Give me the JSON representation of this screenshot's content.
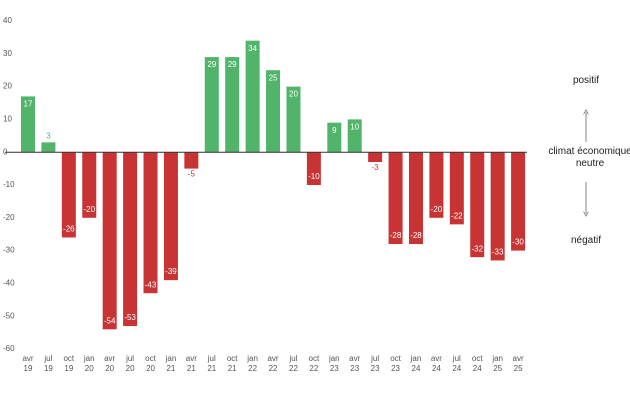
{
  "chart_data": {
    "type": "bar",
    "categories": [
      "avr\n19",
      "jul\n19",
      "oct\n19",
      "jan\n20",
      "avr\n20",
      "jul\n20",
      "oct\n20",
      "jan\n21",
      "avr\n21",
      "jul\n21",
      "oct\n21",
      "jan\n22",
      "avr\n22",
      "jul\n22",
      "oct\n22",
      "jan\n23",
      "avr\n23",
      "jul\n23",
      "oct\n23",
      "jan\n24",
      "avr\n24",
      "jul\n24",
      "oct\n24",
      "jan\n25",
      "avr\n25"
    ],
    "values": [
      17,
      3,
      -26,
      -20,
      -54,
      -53,
      -43,
      -39,
      -5,
      29,
      29,
      34,
      25,
      20,
      -10,
      9,
      10,
      -3,
      -28,
      -28,
      -20,
      -22,
      -32,
      -33,
      -30
    ],
    "positive_color": "#52b36b",
    "negative_color": "#c83434",
    "ylim": [
      -60,
      40
    ],
    "yticks": [
      -60,
      -50,
      -40,
      -30,
      -20,
      -10,
      0,
      10,
      20,
      30,
      40
    ],
    "grid": false,
    "annotations": [
      "positif",
      "climat économique\nneutre",
      "négatif"
    ]
  }
}
